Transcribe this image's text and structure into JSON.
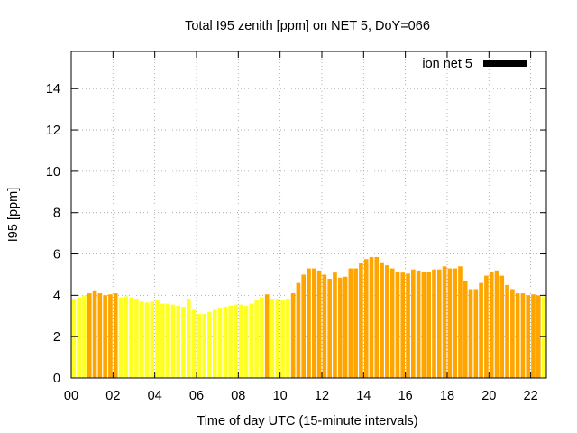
{
  "chart_data": {
    "type": "bar",
    "title": "Total I95 zenith [ppm] on NET 5, DoY=066",
    "xlabel": "Time of day UTC (15-minute intervals)",
    "ylabel": "I95 [ppm]",
    "xlim": [
      0,
      22.75
    ],
    "ylim": [
      0,
      15.8
    ],
    "xticks": [
      "00",
      "02",
      "04",
      "06",
      "08",
      "10",
      "12",
      "14",
      "16",
      "18",
      "20",
      "22"
    ],
    "yticks": [
      "0",
      "2",
      "4",
      "6",
      "8",
      "10",
      "12",
      "14"
    ],
    "grid": true,
    "legend": {
      "position": "top-right",
      "entries": [
        "ion net 5"
      ]
    },
    "bar_interval_hours": 0.25,
    "colors": {
      "low": "#ffff22",
      "high": "#ffa500",
      "legend_swatch": "#000000"
    },
    "x": [
      0.0,
      0.25,
      0.5,
      0.75,
      1.0,
      1.25,
      1.5,
      1.75,
      2.0,
      2.25,
      2.5,
      2.75,
      3.0,
      3.25,
      3.5,
      3.75,
      4.0,
      4.25,
      4.5,
      4.75,
      5.0,
      5.25,
      5.5,
      5.75,
      6.0,
      6.25,
      6.5,
      6.75,
      7.0,
      7.25,
      7.5,
      7.75,
      8.0,
      8.25,
      8.5,
      8.75,
      9.0,
      9.25,
      9.5,
      9.75,
      10.0,
      10.25,
      10.5,
      10.75,
      11.0,
      11.25,
      11.5,
      11.75,
      12.0,
      12.25,
      12.5,
      12.75,
      13.0,
      13.25,
      13.5,
      13.75,
      14.0,
      14.25,
      14.5,
      14.75,
      15.0,
      15.25,
      15.5,
      15.75,
      16.0,
      16.25,
      16.5,
      16.75,
      17.0,
      17.25,
      17.5,
      17.75,
      18.0,
      18.25,
      18.5,
      18.75,
      19.0,
      19.25,
      19.5,
      19.75,
      20.0,
      20.25,
      20.5,
      20.75,
      21.0,
      21.25,
      21.5,
      21.75,
      22.0,
      22.25,
      22.5
    ],
    "values": [
      3.8,
      3.9,
      4.0,
      4.1,
      4.2,
      4.1,
      4.0,
      4.05,
      4.1,
      3.9,
      3.95,
      3.9,
      3.8,
      3.7,
      3.65,
      3.7,
      3.75,
      3.6,
      3.6,
      3.55,
      3.5,
      3.45,
      3.8,
      3.3,
      3.1,
      3.1,
      3.2,
      3.3,
      3.4,
      3.45,
      3.5,
      3.55,
      3.55,
      3.5,
      3.6,
      3.75,
      3.9,
      4.05,
      3.8,
      3.8,
      3.75,
      3.8,
      4.1,
      4.6,
      5.0,
      5.3,
      5.3,
      5.2,
      5.0,
      4.8,
      5.1,
      4.85,
      4.9,
      5.3,
      5.3,
      5.55,
      5.75,
      5.85,
      5.85,
      5.6,
      5.45,
      5.3,
      5.15,
      5.1,
      5.05,
      5.25,
      5.2,
      5.15,
      5.15,
      5.25,
      5.25,
      5.4,
      5.3,
      5.3,
      5.4,
      4.7,
      4.3,
      4.3,
      4.6,
      4.95,
      5.15,
      5.2,
      4.95,
      4.5,
      4.3,
      4.1,
      4.1,
      4.0,
      4.05,
      4.0,
      3.95
    ],
    "value_level": [
      "low",
      "low",
      "low",
      "high",
      "high",
      "high",
      "high",
      "high",
      "high",
      "low",
      "low",
      "low",
      "low",
      "low",
      "low",
      "low",
      "low",
      "low",
      "low",
      "low",
      "low",
      "low",
      "low",
      "low",
      "low",
      "low",
      "low",
      "low",
      "low",
      "low",
      "low",
      "low",
      "low",
      "low",
      "low",
      "low",
      "low",
      "high",
      "low",
      "low",
      "low",
      "low",
      "high",
      "high",
      "high",
      "high",
      "high",
      "high",
      "high",
      "high",
      "high",
      "high",
      "high",
      "high",
      "high",
      "high",
      "high",
      "high",
      "high",
      "high",
      "high",
      "high",
      "high",
      "high",
      "high",
      "high",
      "high",
      "high",
      "high",
      "high",
      "high",
      "high",
      "high",
      "high",
      "high",
      "high",
      "high",
      "high",
      "high",
      "high",
      "high",
      "high",
      "high",
      "high",
      "high",
      "high",
      "high",
      "high",
      "high",
      "high",
      "low"
    ]
  }
}
